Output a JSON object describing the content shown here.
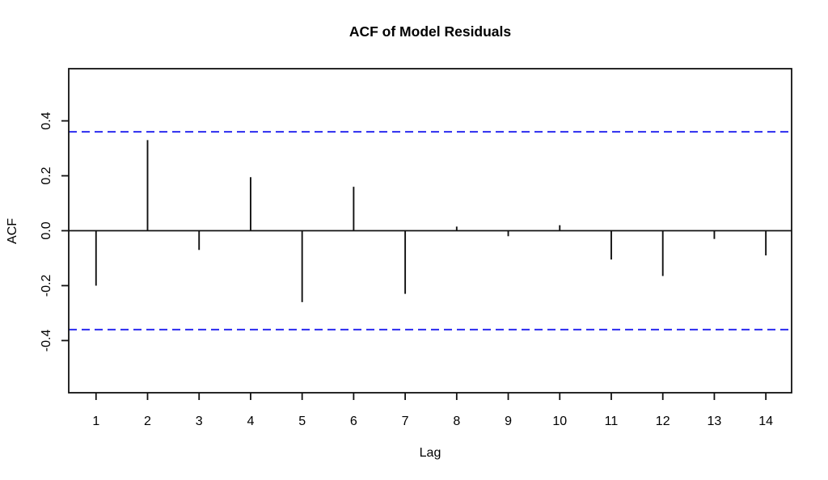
{
  "chart_data": {
    "type": "bar",
    "subtype": "acf-stem-plot",
    "title": "ACF of Model Residuals",
    "xlabel": "Lag",
    "ylabel": "ACF",
    "categories": [
      1,
      2,
      3,
      4,
      5,
      6,
      7,
      8,
      9,
      10,
      11,
      12,
      13,
      14
    ],
    "values": [
      -0.2,
      0.33,
      -0.07,
      0.195,
      -0.26,
      0.16,
      -0.23,
      0.015,
      -0.02,
      0.02,
      -0.105,
      -0.165,
      -0.03,
      -0.09
    ],
    "confidence_bounds": {
      "upper": 0.36,
      "lower": -0.36,
      "line_style": "dashed",
      "color": "#2B2BEF"
    },
    "zero_line": 0.0,
    "xlim": [
      0.47,
      14.5
    ],
    "ylim": [
      -0.59,
      0.59
    ],
    "yticks": [
      {
        "value": 0.4,
        "label": "0.4"
      },
      {
        "value": 0.2,
        "label": "0.2"
      },
      {
        "value": 0.0,
        "label": "0.0"
      },
      {
        "value": -0.2,
        "label": "-0.2"
      },
      {
        "value": -0.4,
        "label": "-0.4"
      }
    ],
    "grid": false,
    "legend": null,
    "bar_color": "#111111",
    "axis_color": "#111111",
    "background": "#FFFFFF"
  }
}
